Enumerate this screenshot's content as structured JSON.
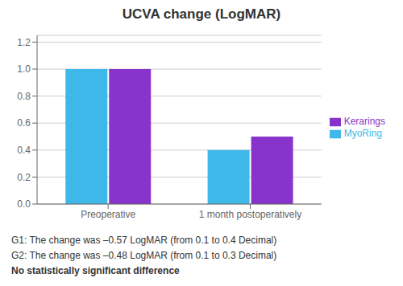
{
  "chart_data": {
    "type": "bar",
    "title": "UCVA change (LogMAR)",
    "categories": [
      "Preoperative",
      "1 month postoperatively"
    ],
    "series": [
      {
        "name": "MyoRing",
        "color": "#3db8e8",
        "values": [
          1.0,
          0.4
        ]
      },
      {
        "name": "Kerarings",
        "color": "#8833cc",
        "values": [
          1.0,
          0.5
        ]
      }
    ],
    "ylim": [
      0,
      1.25
    ],
    "yticks": [
      {
        "value": 0,
        "label": "0.0"
      },
      0.2,
      0.4,
      0.6,
      0.8,
      {
        "value": 1.0,
        "label": "1.0"
      },
      1.2
    ],
    "grid": true,
    "legend": "right",
    "annotations": [
      "G1: The change was –0.57 LogMAR (from 0.1 to 0.4 Decimal)",
      "G2: The change was –0.48 LogMAR (from 0.1 to 0.3 Decimal)",
      "No statistically significant difference"
    ]
  }
}
